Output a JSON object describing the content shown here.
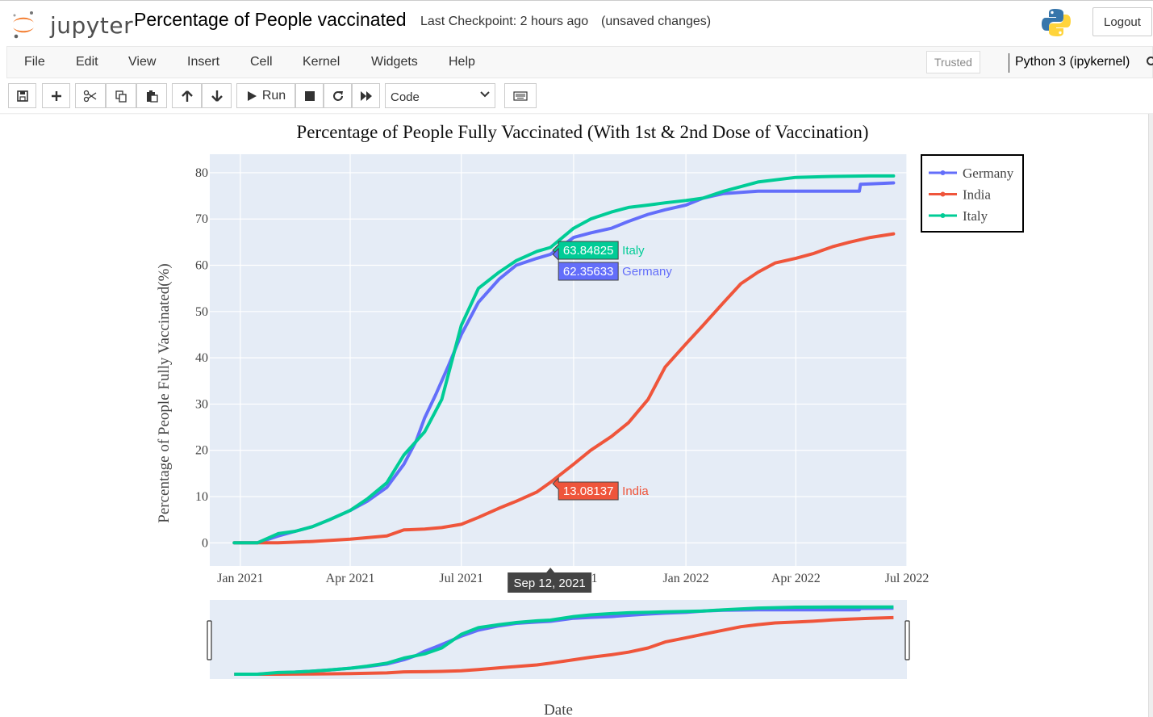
{
  "header": {
    "logo_text": "jupyter",
    "notebook_title": "Percentage of People vaccinated",
    "checkpoint": "Last Checkpoint: 2 hours ago",
    "status": "(unsaved changes)",
    "logout_label": "Logout"
  },
  "menu": {
    "items": [
      "File",
      "Edit",
      "View",
      "Insert",
      "Cell",
      "Kernel",
      "Widgets",
      "Help"
    ],
    "trusted_label": "Trusted",
    "kernel_name": "Python 3 (ipykernel)"
  },
  "toolbar": {
    "run_label": "Run",
    "cell_type": "Code",
    "icons": [
      "save-icon",
      "plus-icon",
      "scissors-icon",
      "copy-icon",
      "paste-icon",
      "arrow-up-icon",
      "arrow-down-icon",
      "play-icon",
      "stop-icon",
      "restart-icon",
      "fast-forward-icon",
      "keyboard-icon"
    ]
  },
  "colors": {
    "Germany": "#636efa",
    "India": "#ef553b",
    "Italy": "#00cc96",
    "plot_bg": "#e5ecf6"
  },
  "chart_data": {
    "type": "line",
    "title": "Percentage of People Fully Vaccinated (With 1st & 2nd Dose of Vaccination)",
    "xlabel": "Date",
    "ylabel": "Percentage of People Fully Vaccinated(%)",
    "x_ticks": [
      "Jan 2021",
      "Apr 2021",
      "Jul 2021",
      "Oct 2021",
      "Jan 2022",
      "Apr 2022",
      "Jul 2022"
    ],
    "y_ticks": [
      0,
      10,
      20,
      30,
      40,
      50,
      60,
      70,
      80
    ],
    "xlim": [
      "2020-12-07",
      "2022-07-01"
    ],
    "ylim": [
      -5,
      84
    ],
    "grid": true,
    "legend_position": "top-right-outside",
    "rangeslider": true,
    "series": [
      {
        "name": "Germany",
        "x": [
          "2020-12-27",
          "2021-01-15",
          "2021-02-01",
          "2021-02-15",
          "2021-03-01",
          "2021-03-15",
          "2021-04-01",
          "2021-04-15",
          "2021-05-01",
          "2021-05-15",
          "2021-05-25",
          "2021-06-01",
          "2021-06-10",
          "2021-06-20",
          "2021-07-01",
          "2021-07-15",
          "2021-08-01",
          "2021-08-15",
          "2021-09-01",
          "2021-09-12",
          "2021-10-01",
          "2021-10-15",
          "2021-11-01",
          "2021-11-15",
          "2021-12-01",
          "2021-12-15",
          "2022-01-01",
          "2022-01-15",
          "2022-02-01",
          "2022-03-01",
          "2022-04-01",
          "2022-05-01",
          "2022-05-23",
          "2022-05-24",
          "2022-06-01",
          "2022-06-20"
        ],
        "y": [
          0,
          0,
          1.5,
          2.5,
          3.5,
          5,
          7,
          9,
          12,
          17,
          22,
          27,
          32,
          38,
          45,
          52,
          57,
          60,
          61.5,
          62.35633,
          66,
          67,
          68,
          69.5,
          71,
          72,
          73,
          74.5,
          75.5,
          76,
          76,
          76,
          76,
          77.5,
          77.6,
          77.8
        ]
      },
      {
        "name": "India",
        "x": [
          "2020-12-27",
          "2021-01-15",
          "2021-02-01",
          "2021-03-01",
          "2021-04-01",
          "2021-05-01",
          "2021-05-15",
          "2021-06-01",
          "2021-06-15",
          "2021-07-01",
          "2021-07-15",
          "2021-08-01",
          "2021-08-15",
          "2021-09-01",
          "2021-09-12",
          "2021-10-01",
          "2021-10-15",
          "2021-11-01",
          "2021-11-15",
          "2021-12-01",
          "2021-12-15",
          "2022-01-01",
          "2022-01-15",
          "2022-02-01",
          "2022-02-15",
          "2022-03-01",
          "2022-03-15",
          "2022-04-01",
          "2022-04-15",
          "2022-05-01",
          "2022-05-15",
          "2022-06-01",
          "2022-06-20"
        ],
        "y": [
          0,
          0,
          0,
          0.3,
          0.8,
          1.5,
          2.8,
          3,
          3.3,
          4,
          5.5,
          7.5,
          9,
          11,
          13.08137,
          17,
          20,
          23,
          26,
          31,
          38,
          43,
          47,
          52,
          56,
          58.5,
          60.5,
          61.5,
          62.5,
          64,
          65,
          66,
          66.8
        ]
      },
      {
        "name": "Italy",
        "x": [
          "2020-12-27",
          "2021-01-15",
          "2021-02-01",
          "2021-02-15",
          "2021-03-01",
          "2021-03-15",
          "2021-04-01",
          "2021-04-15",
          "2021-05-01",
          "2021-05-15",
          "2021-06-01",
          "2021-06-15",
          "2021-07-01",
          "2021-07-15",
          "2021-08-01",
          "2021-08-15",
          "2021-09-01",
          "2021-09-12",
          "2021-10-01",
          "2021-10-15",
          "2021-11-01",
          "2021-11-15",
          "2021-12-01",
          "2021-12-15",
          "2022-01-01",
          "2022-01-15",
          "2022-02-01",
          "2022-03-01",
          "2022-04-01",
          "2022-05-01",
          "2022-06-01",
          "2022-06-20"
        ],
        "y": [
          0,
          0,
          2,
          2.5,
          3.5,
          5,
          7,
          9.5,
          13,
          19,
          24,
          31,
          47,
          55,
          58.5,
          61,
          63,
          63.84825,
          68,
          70,
          71.5,
          72.5,
          73,
          73.5,
          74,
          74.5,
          76,
          78,
          79,
          79.2,
          79.3,
          79.3
        ]
      }
    ],
    "hover": {
      "date_label": "Sep 12, 2021",
      "items": [
        {
          "name": "Italy",
          "value": "63.84825"
        },
        {
          "name": "Germany",
          "value": "62.35633"
        },
        {
          "name": "India",
          "value": "13.08137"
        }
      ]
    }
  }
}
